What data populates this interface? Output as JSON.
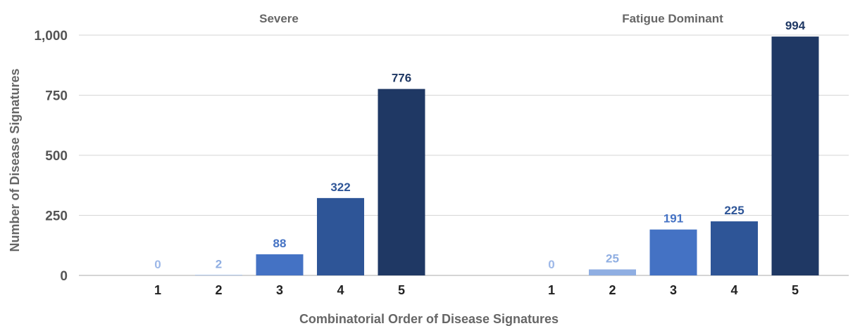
{
  "chart_data": {
    "type": "bar",
    "ylabel": "Number of Disease Signatures",
    "xlabel": "Combinatorial Order of Disease Signatures",
    "ylim": [
      0,
      1000
    ],
    "yticks": [
      "0",
      "250",
      "500",
      "750",
      "1,000"
    ],
    "ytick_values": [
      0,
      250,
      500,
      750,
      1000
    ],
    "grid": true,
    "legend": "none",
    "colors": [
      "#9db8e8",
      "#8faee2",
      "#4472c4",
      "#2e5597",
      "#1f3864"
    ],
    "groups": [
      {
        "title": "Severe",
        "categories": [
          "1",
          "2",
          "3",
          "4",
          "5"
        ],
        "values": [
          0,
          2,
          88,
          322,
          776
        ],
        "labels": [
          "0",
          "2",
          "88",
          "322",
          "776"
        ]
      },
      {
        "title": "Fatigue Dominant",
        "categories": [
          "1",
          "2",
          "3",
          "4",
          "5"
        ],
        "values": [
          0,
          25,
          191,
          225,
          994
        ],
        "labels": [
          "0",
          "25",
          "191",
          "225",
          "994"
        ]
      }
    ]
  }
}
